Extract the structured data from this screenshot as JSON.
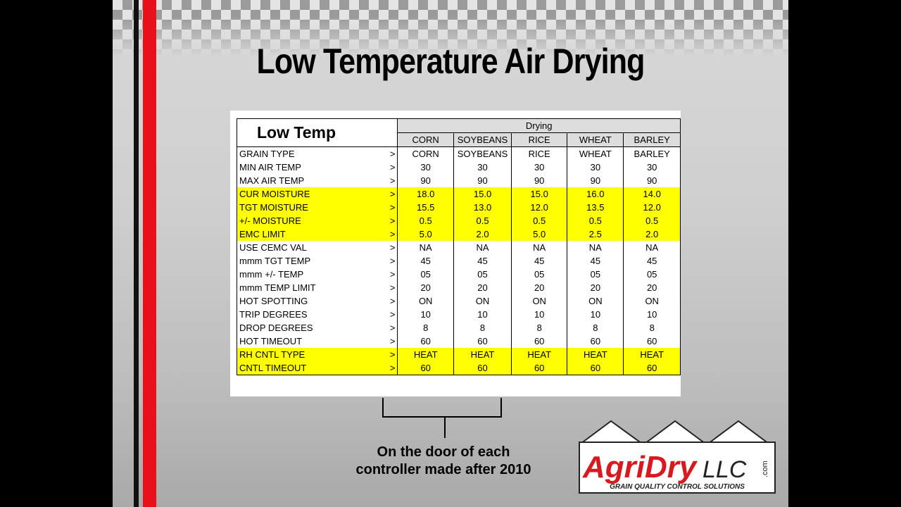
{
  "title": "Low Temperature Air Drying",
  "table": {
    "corner": "Low Temp",
    "group": "Drying",
    "columns": [
      "CORN",
      "SOYBEANS",
      "RICE",
      "WHEAT",
      "BARLEY"
    ],
    "rows": [
      {
        "cells": [
          "GRAIN TYPE",
          ">",
          "CORN",
          "SOYBEANS",
          "RICE",
          "WHEAT",
          "BARLEY"
        ],
        "highlight": false
      },
      {
        "cells": [
          "MIN AIR TEMP",
          ">",
          "30",
          "30",
          "30",
          "30",
          "30"
        ],
        "highlight": false
      },
      {
        "cells": [
          "MAX AIR TEMP",
          ">",
          "90",
          "90",
          "90",
          "90",
          "90"
        ],
        "highlight": false
      },
      {
        "cells": [
          "CUR MOISTURE",
          ">",
          "18.0",
          "15.0",
          "15.0",
          "16.0",
          "14.0"
        ],
        "highlight": true
      },
      {
        "cells": [
          "TGT MOISTURE",
          ">",
          "15.5",
          "13.0",
          "12.0",
          "13.5",
          "12.0"
        ],
        "highlight": true
      },
      {
        "cells": [
          "+/- MOISTURE",
          ">",
          "0.5",
          "0.5",
          "0.5",
          "0.5",
          "0.5"
        ],
        "highlight": true
      },
      {
        "cells": [
          "EMC LIMIT",
          ">",
          "5.0",
          "2.0",
          "5.0",
          "2.5",
          "2.0"
        ],
        "highlight": true
      },
      {
        "cells": [
          "USE CEMC VAL",
          ">",
          "NA",
          "NA",
          "NA",
          "NA",
          "NA"
        ],
        "highlight": false
      },
      {
        "cells": [
          "mmm TGT TEMP",
          ">",
          "45",
          "45",
          "45",
          "45",
          "45"
        ],
        "highlight": false
      },
      {
        "cells": [
          "mmm +/- TEMP",
          ">",
          "05",
          "05",
          "05",
          "05",
          "05"
        ],
        "highlight": false
      },
      {
        "cells": [
          "mmm TEMP LIMIT",
          ">",
          "20",
          "20",
          "20",
          "20",
          "20"
        ],
        "highlight": false
      },
      {
        "cells": [
          "HOT SPOTTING",
          ">",
          "ON",
          "ON",
          "ON",
          "ON",
          "ON"
        ],
        "highlight": false
      },
      {
        "cells": [
          "TRIP DEGREES",
          ">",
          "10",
          "10",
          "10",
          "10",
          "10"
        ],
        "highlight": false
      },
      {
        "cells": [
          "DROP DEGREES",
          ">",
          "8",
          "8",
          "8",
          "8",
          "8"
        ],
        "highlight": false
      },
      {
        "cells": [
          "HOT TIMEOUT",
          ">",
          "60",
          "60",
          "60",
          "60",
          "60"
        ],
        "highlight": false
      },
      {
        "cells": [
          "RH CNTL TYPE",
          ">",
          "HEAT",
          "HEAT",
          "HEAT",
          "HEAT",
          "HEAT"
        ],
        "highlight": true
      },
      {
        "cells": [
          "CNTL TIMEOUT",
          ">",
          "60",
          "60",
          "60",
          "60",
          "60"
        ],
        "highlight": true
      }
    ]
  },
  "caption": [
    "On the door of each",
    "controller made after 2010"
  ],
  "logo": {
    "name": "AgriDry",
    "suffix": "LLC",
    "domain": ".com",
    "tagline": "GRAIN QUALITY CONTROL SOLUTIONS"
  }
}
